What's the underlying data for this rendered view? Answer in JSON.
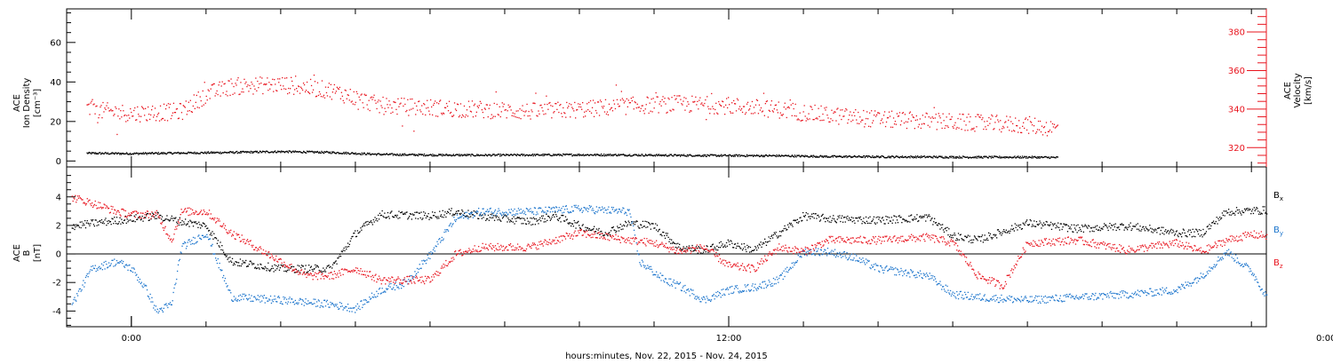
{
  "chart_data": [
    {
      "type": "scatter",
      "panel": "top",
      "ylabel_lines": [
        "ACE",
        "Ion Density",
        "[cm⁻³]"
      ],
      "y2label_lines": [
        "ACE",
        "Velocity",
        "[km/s]"
      ],
      "ylim": [
        -3,
        77
      ],
      "y2lim": [
        310,
        392
      ],
      "yticks": [
        0,
        20,
        40,
        60
      ],
      "y2ticks": [
        320,
        340,
        360,
        380
      ],
      "grid": false,
      "series": [
        {
          "axis": "left",
          "color": "#000000",
          "points": [
            [
              -0.9,
              4.2
            ],
            [
              0,
              4
            ],
            [
              1,
              4.3
            ],
            [
              2,
              4.6
            ],
            [
              3,
              5.0
            ],
            [
              4,
              4.6
            ],
            [
              5,
              3.6
            ],
            [
              6,
              3.3
            ],
            [
              7,
              3.2
            ],
            [
              8,
              3.3
            ],
            [
              9,
              3.4
            ],
            [
              10,
              3.3
            ],
            [
              11,
              3.1
            ],
            [
              12,
              3.0
            ],
            [
              13,
              2.9
            ],
            [
              14,
              2.5
            ],
            [
              15,
              2.4
            ],
            [
              16,
              2.3
            ],
            [
              17,
              2.2
            ],
            [
              18,
              2.2
            ],
            [
              18.6,
              2.0
            ]
          ]
        },
        {
          "axis": "right",
          "color": "#e8141e",
          "points": [
            [
              -0.9,
              340
            ],
            [
              0,
              338
            ],
            [
              1,
              339
            ],
            [
              1.5,
              348
            ],
            [
              2,
              352
            ],
            [
              3,
              353
            ],
            [
              4,
              350
            ],
            [
              5,
              342
            ],
            [
              6,
              341
            ],
            [
              7,
              340
            ],
            [
              8,
              339
            ],
            [
              9,
              340
            ],
            [
              10,
              342
            ],
            [
              11,
              343
            ],
            [
              12,
              342
            ],
            [
              13,
              340
            ],
            [
              14,
              337
            ],
            [
              15,
              335
            ],
            [
              16,
              334
            ],
            [
              17,
              333
            ],
            [
              18,
              332
            ],
            [
              18.6,
              330
            ]
          ]
        }
      ]
    },
    {
      "type": "scatter",
      "panel": "bottom",
      "ylabel_lines": [
        "ACE",
        "B",
        "[nT]"
      ],
      "ylim": [
        -5.1,
        6.1
      ],
      "yticks": [
        -4,
        -2,
        0,
        2,
        4
      ],
      "zero_line": true,
      "grid": false,
      "xlabel": "hours:minutes, Nov. 22, 2015 - Nov. 24, 2015",
      "xlim": [
        -1.3,
        22.8
      ],
      "xtick_labels": [
        {
          "x": 0,
          "label": "0:00"
        },
        {
          "x": 12,
          "label": "12:00"
        },
        {
          "x": 24,
          "label": "0:00"
        }
      ],
      "series": [
        {
          "name": "B_x",
          "color": "#000000",
          "points": [
            [
              -1.2,
              2.0
            ],
            [
              -0.5,
              2.3
            ],
            [
              0,
              2.5
            ],
            [
              0.5,
              2.7
            ],
            [
              1,
              2.3
            ],
            [
              1.5,
              2.0
            ],
            [
              2,
              -0.5
            ],
            [
              3,
              -1.0
            ],
            [
              4,
              -1.0
            ],
            [
              4.5,
              1.5
            ],
            [
              5,
              2.8
            ],
            [
              6,
              2.7
            ],
            [
              6.5,
              3.0
            ],
            [
              7,
              2.7
            ],
            [
              7.5,
              2.5
            ],
            [
              8,
              2.3
            ],
            [
              8.5,
              2.7
            ],
            [
              9,
              2.0
            ],
            [
              9.5,
              1.5
            ],
            [
              10,
              2.2
            ],
            [
              10.5,
              2.0
            ],
            [
              11,
              0.5
            ],
            [
              11.5,
              0.3
            ],
            [
              12,
              0.8
            ],
            [
              12.5,
              0.3
            ],
            [
              13,
              1.5
            ],
            [
              13.5,
              2.7
            ],
            [
              14,
              2.5
            ],
            [
              15,
              2.4
            ],
            [
              16,
              2.6
            ],
            [
              16.5,
              1.3
            ],
            [
              17,
              1.0
            ],
            [
              18,
              2.2
            ],
            [
              19,
              1.8
            ],
            [
              20,
              2.0
            ],
            [
              21,
              1.5
            ],
            [
              21.5,
              1.5
            ],
            [
              22,
              3.0
            ],
            [
              22.8,
              3.1
            ]
          ]
        },
        {
          "name": "B_y",
          "color": "#1b74cc",
          "points": [
            [
              -1.2,
              -3.5
            ],
            [
              -0.8,
              -1.0
            ],
            [
              -0.3,
              -0.5
            ],
            [
              0,
              -1.0
            ],
            [
              0.3,
              -2.5
            ],
            [
              0.5,
              -4.0
            ],
            [
              0.8,
              -3.5
            ],
            [
              1,
              0.5
            ],
            [
              1.5,
              1.5
            ],
            [
              2,
              -3.0
            ],
            [
              3,
              -3.2
            ],
            [
              4,
              -3.5
            ],
            [
              4.5,
              -3.8
            ],
            [
              5,
              -2.5
            ],
            [
              5.5,
              -2.0
            ],
            [
              6,
              0.0
            ],
            [
              6.5,
              2.5
            ],
            [
              7,
              3.0
            ],
            [
              8,
              3.0
            ],
            [
              9,
              3.2
            ],
            [
              10,
              3.0
            ],
            [
              10.2,
              -0.5
            ],
            [
              10.7,
              -1.8
            ],
            [
              11,
              -2.2
            ],
            [
              11.5,
              -3.2
            ],
            [
              12,
              -2.5
            ],
            [
              12.5,
              -2.3
            ],
            [
              13,
              -1.8
            ],
            [
              13.5,
              0.2
            ],
            [
              14,
              0.2
            ],
            [
              14.5,
              -0.2
            ],
            [
              15,
              -1.0
            ],
            [
              16,
              -1.5
            ],
            [
              16.5,
              -2.8
            ],
            [
              17,
              -3.0
            ],
            [
              18,
              -3.2
            ],
            [
              19,
              -3.0
            ],
            [
              20,
              -2.8
            ],
            [
              21,
              -2.5
            ],
            [
              21.5,
              -1.5
            ],
            [
              22,
              0.2
            ],
            [
              22.5,
              -1.2
            ],
            [
              22.8,
              -3.0
            ]
          ]
        },
        {
          "name": "B_z",
          "color": "#e8141e",
          "points": [
            [
              -1.2,
              4.0
            ],
            [
              -0.8,
              3.6
            ],
            [
              -0.3,
              3.0
            ],
            [
              0,
              2.8
            ],
            [
              0.5,
              2.8
            ],
            [
              0.8,
              1.0
            ],
            [
              1,
              3.0
            ],
            [
              1.5,
              3.0
            ],
            [
              2,
              1.5
            ],
            [
              2.5,
              0.5
            ],
            [
              3,
              -0.5
            ],
            [
              3.5,
              -1.5
            ],
            [
              4,
              -1.5
            ],
            [
              4.5,
              -1.0
            ],
            [
              5,
              -1.8
            ],
            [
              6,
              -1.8
            ],
            [
              6.5,
              0.0
            ],
            [
              7,
              0.5
            ],
            [
              8,
              0.5
            ],
            [
              9,
              1.5
            ],
            [
              10,
              1.0
            ],
            [
              10.5,
              0.8
            ],
            [
              11,
              0.2
            ],
            [
              11.5,
              0.5
            ],
            [
              12,
              -0.8
            ],
            [
              12.5,
              -1.0
            ],
            [
              13,
              0.5
            ],
            [
              13.5,
              0.2
            ],
            [
              14,
              1.0
            ],
            [
              15,
              1.0
            ],
            [
              16,
              1.2
            ],
            [
              16.5,
              0.8
            ],
            [
              17,
              -1.5
            ],
            [
              17.5,
              -2.2
            ],
            [
              18,
              0.8
            ],
            [
              19,
              1.0
            ],
            [
              20,
              0.3
            ],
            [
              21,
              0.8
            ],
            [
              21.5,
              0.2
            ],
            [
              22,
              1.0
            ],
            [
              22.5,
              1.4
            ],
            [
              22.8,
              1.3
            ]
          ]
        }
      ]
    }
  ],
  "legend": [
    {
      "label_main": "B",
      "label_sub": "x",
      "color": "#000000"
    },
    {
      "label_main": "B",
      "label_sub": "y",
      "color": "#1b74cc"
    },
    {
      "label_main": "B",
      "label_sub": "z",
      "color": "#e8141e"
    }
  ],
  "colors": {
    "frame": "#000000",
    "red": "#e8141e",
    "blue": "#1b74cc",
    "black": "#000000"
  }
}
